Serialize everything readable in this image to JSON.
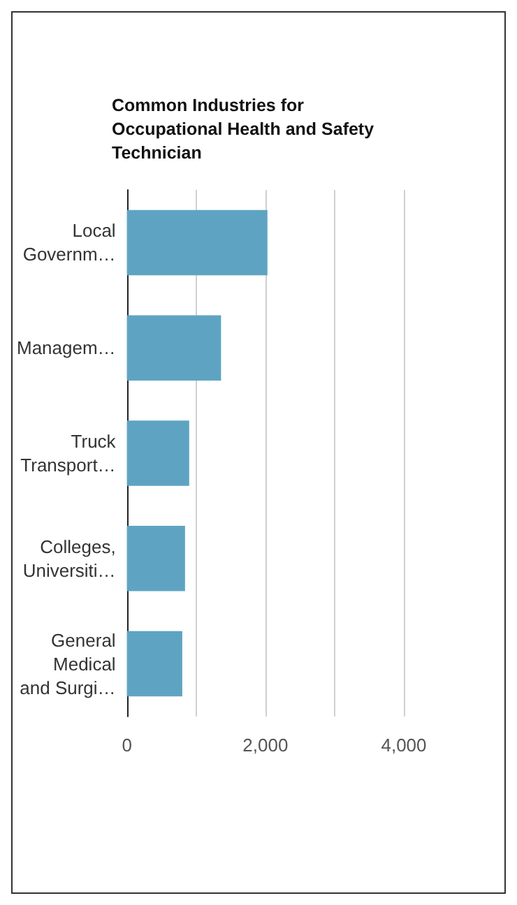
{
  "chart_data": {
    "type": "bar",
    "orientation": "horizontal",
    "title": "Common Industries for\nOccupational Health and Safety\nTechnician",
    "categories": [
      "Local\nGovernm…",
      "Managem…",
      "Truck\nTransport…",
      "Colleges,\nUniversiti…",
      "General\nMedical\nand Surgi…"
    ],
    "values": [
      2030,
      1360,
      900,
      840,
      800
    ],
    "color": "#5ea4c2",
    "xlim": [
      0,
      4000
    ],
    "xticks": [
      0,
      {
        "value": 1000,
        "label": null
      },
      {
        "value": 2000,
        "label": "2,000"
      },
      {
        "value": 3000,
        "label": null
      },
      {
        "value": 4000,
        "label": "4,000"
      }
    ],
    "grid": "x"
  }
}
